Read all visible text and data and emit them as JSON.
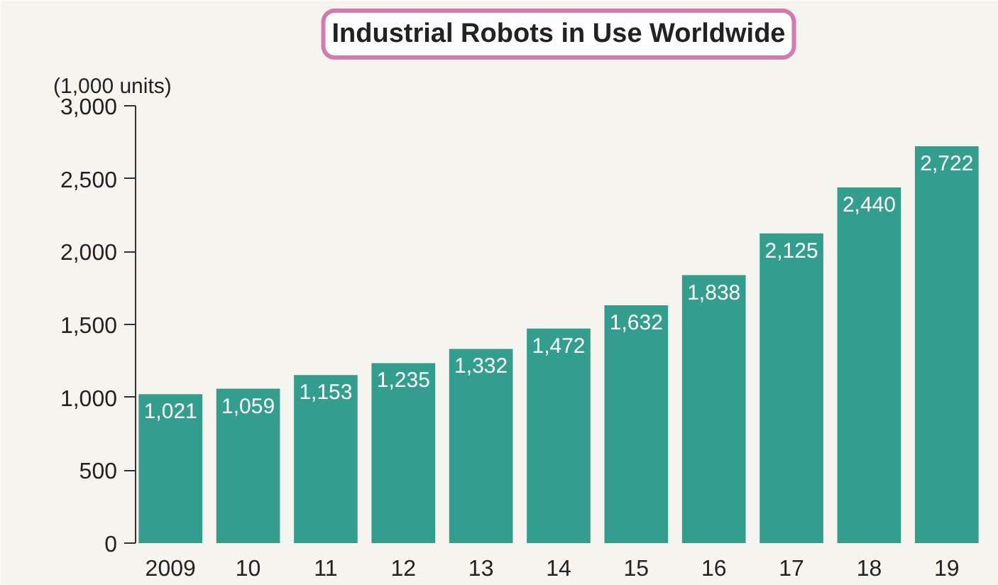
{
  "chart_data": {
    "type": "bar",
    "title": "Industrial Robots in Use Worldwide",
    "ylabel": "(1,000 units)",
    "categories": [
      "2009",
      "10",
      "11",
      "12",
      "13",
      "14",
      "15",
      "16",
      "17",
      "18",
      "19"
    ],
    "values": [
      1021,
      1059,
      1153,
      1235,
      1332,
      1472,
      1632,
      1838,
      2125,
      2440,
      2722
    ],
    "value_labels": [
      "1,021",
      "1,059",
      "1,153",
      "1,235",
      "1,332",
      "1,472",
      "1,632",
      "1,838",
      "2,125",
      "2,440",
      "2,722"
    ],
    "color": "#349e8e",
    "ylim": [
      0,
      3000
    ],
    "yticks": [
      0,
      500,
      {
        "value": 1000,
        "label": "1,000"
      },
      {
        "value": 1500,
        "label": "1,500"
      },
      {
        "value": 2000,
        "label": "2,000"
      },
      {
        "value": 2500,
        "label": "2,500"
      },
      {
        "value": 3000,
        "label": "3,000"
      }
    ],
    "grid": false
  }
}
